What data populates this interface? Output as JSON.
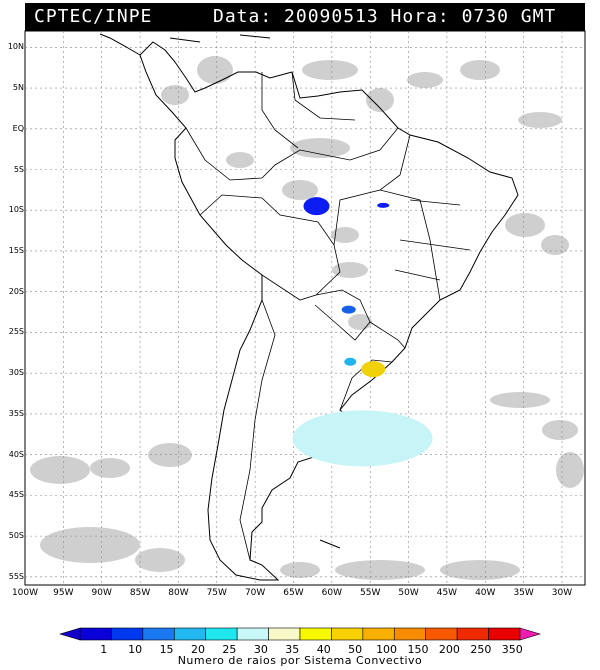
{
  "header": {
    "agency": "CPTEC/INPE",
    "datetime": "Data: 20090513 Hora: 0730 GMT"
  },
  "map": {
    "lat_labels": [
      "10N",
      "5N",
      "EQ",
      "5S",
      "10S",
      "15S",
      "20S",
      "25S",
      "30S",
      "35S",
      "40S",
      "45S",
      "50S",
      "55S"
    ],
    "lon_labels": [
      "100W",
      "95W",
      "90W",
      "85W",
      "80W",
      "75W",
      "70W",
      "65W",
      "60W",
      "55W",
      "50W",
      "45W",
      "40W",
      "35W",
      "30W"
    ],
    "lat_values": [
      10,
      5,
      0,
      -5,
      -10,
      -15,
      -20,
      -25,
      -30,
      -35,
      -40,
      -45,
      -50,
      -55
    ],
    "lon_values": [
      -100,
      -95,
      -90,
      -85,
      -80,
      -75,
      -70,
      -65,
      -60,
      -55,
      -50,
      -45,
      -40,
      -35,
      -30
    ],
    "extent": {
      "lon_min": -100,
      "lon_max": -27,
      "lat_min": -56,
      "lat_max": 12
    },
    "gridlines": "dashed",
    "convective_systems": [
      {
        "lon": -62,
        "lat": -9.5,
        "level": 10,
        "color": "#0d1cf0"
      },
      {
        "lon": -53.3,
        "lat": -9.4,
        "level": 10,
        "color": "#0d1cf0"
      },
      {
        "lon": -57.8,
        "lat": -22.2,
        "level": 15,
        "color": "#1460e8"
      },
      {
        "lon": -57.6,
        "lat": -28.6,
        "level": 20,
        "color": "#1fb4ee"
      },
      {
        "lon": -54.6,
        "lat": -29.5,
        "level": 40,
        "color": "#f0d20a"
      },
      {
        "lon": -56,
        "lat": -38,
        "level": 30,
        "color": "#c6f4f7"
      }
    ]
  },
  "colorbar": {
    "ticks": [
      "1",
      "10",
      "15",
      "20",
      "25",
      "30",
      "35",
      "40",
      "50",
      "100",
      "150",
      "200",
      "250",
      "350"
    ],
    "colors": [
      "#0a00d8",
      "#0038f0",
      "#1a78f0",
      "#22b8f0",
      "#20e6f0",
      "#c8f8f8",
      "#f8f8c8",
      "#f8f800",
      "#f8d200",
      "#f8b000",
      "#f88c00",
      "#f85800",
      "#f02a00",
      "#e80000"
    ],
    "start_color": "#1400c8",
    "end_color": "#f01cb0",
    "title": "Numero de raios por Sistema Convectivo"
  }
}
